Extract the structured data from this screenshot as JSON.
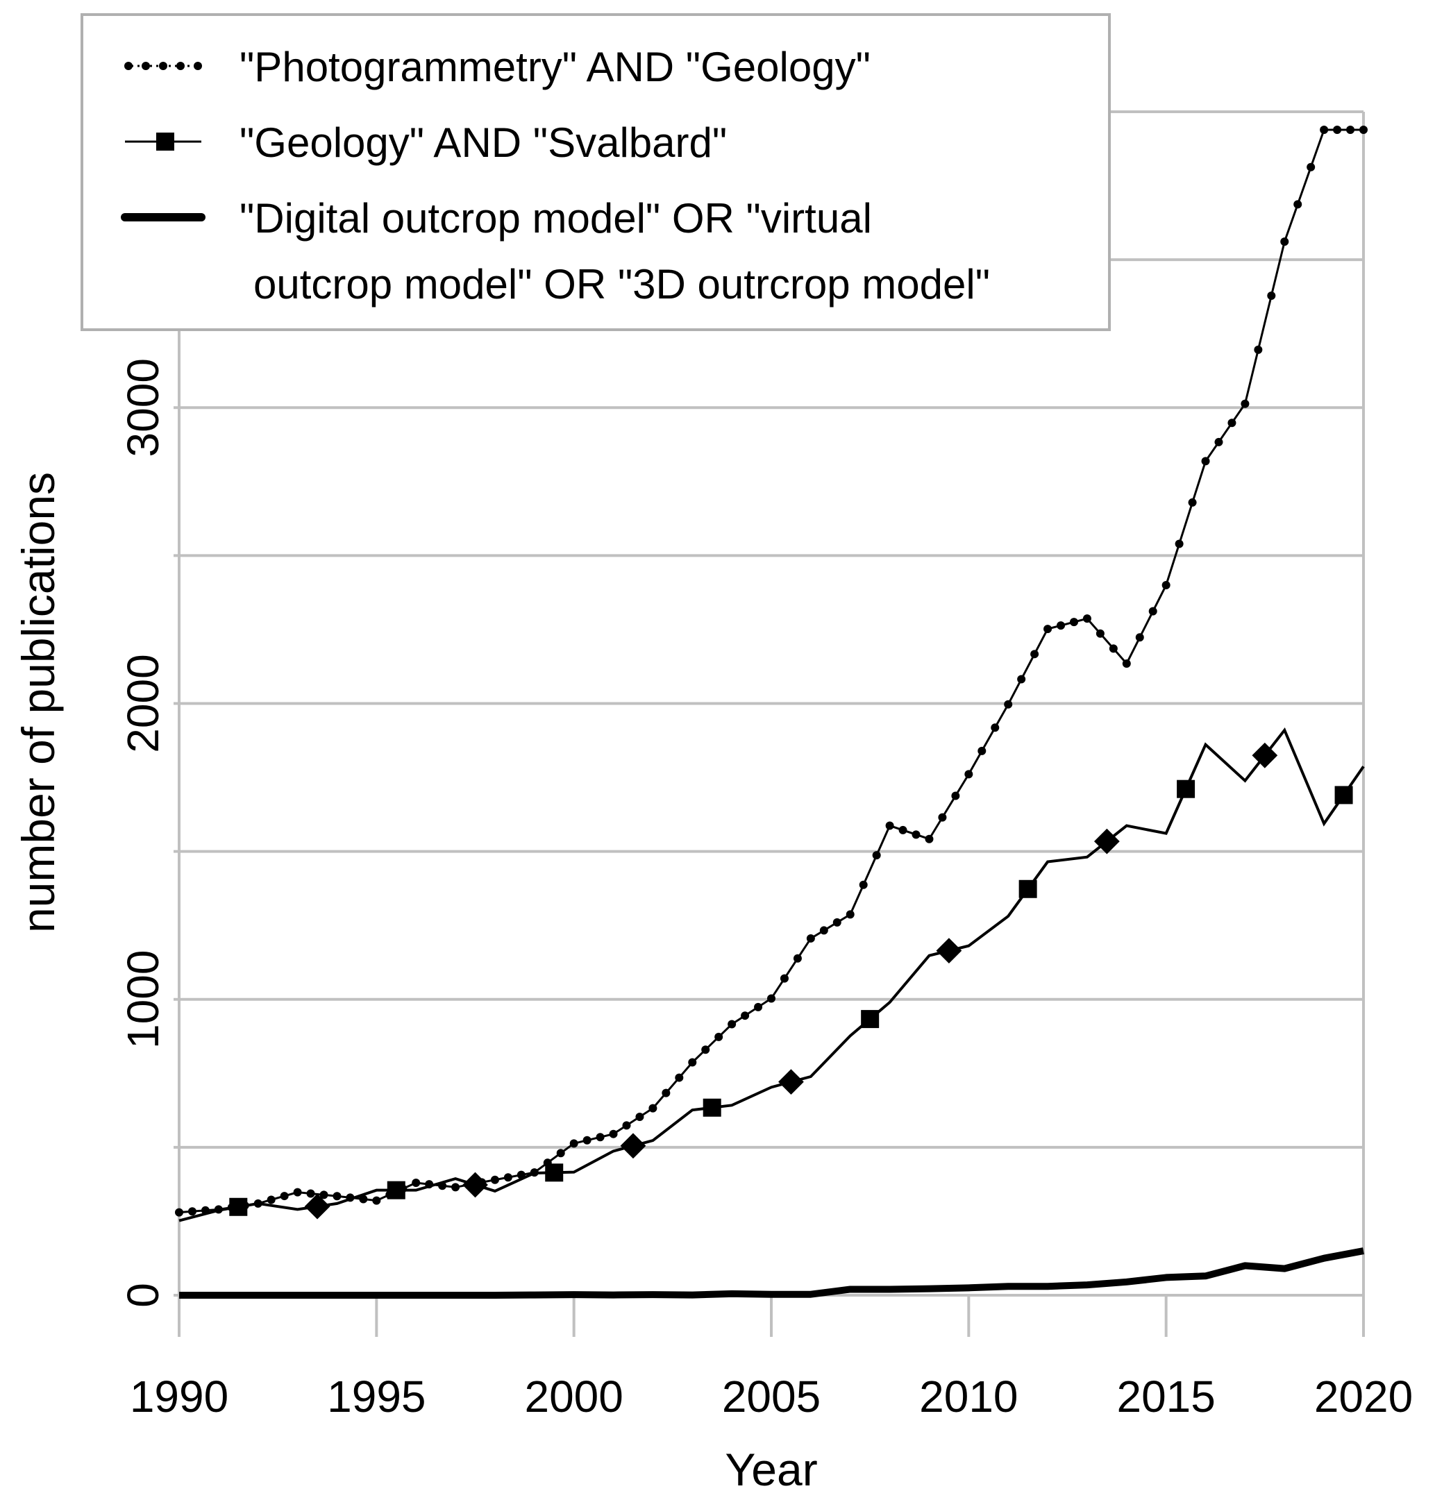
{
  "chart_data": {
    "type": "line",
    "title": "",
    "xlabel": "Year",
    "ylabel": "number of publications",
    "xlim": [
      1990,
      2020
    ],
    "ylim": [
      0,
      4000
    ],
    "grid": true,
    "legend_position": "top-left",
    "x_ticks": [
      "1990",
      "1995",
      "2000",
      "2005",
      "2010",
      "2015",
      "2020"
    ],
    "y_ticks": [
      "0",
      "1000",
      "2000",
      "3000"
    ],
    "x": [
      1990,
      1991,
      1992,
      1993,
      1994,
      1995,
      1996,
      1997,
      1998,
      1999,
      2000,
      2001,
      2002,
      2003,
      2004,
      2005,
      2006,
      2007,
      2008,
      2009,
      2010,
      2011,
      2012,
      2013,
      2014,
      2015,
      2016,
      2017,
      2018,
      2019,
      2020
    ],
    "series": [
      {
        "name": "\"Photogrammetry\" AND \"Geology\"",
        "style": "dotted-markers",
        "values": [
          280,
          290,
          310,
          348,
          335,
          320,
          380,
          365,
          390,
          415,
          513,
          545,
          632,
          787,
          916,
          1003,
          1206,
          1287,
          1587,
          1542,
          1761,
          1997,
          2252,
          2287,
          2135,
          2400,
          2819,
          3013,
          3561,
          3939,
          3939
        ]
      },
      {
        "name": "\"Geology\" AND \"Svalbard\"",
        "style": "square-markers",
        "values": [
          252,
          287,
          310,
          290,
          310,
          355,
          355,
          394,
          352,
          413,
          416,
          487,
          523,
          626,
          642,
          703,
          739,
          877,
          990,
          1148,
          1181,
          1281,
          1465,
          1481,
          1587,
          1561,
          1861,
          1739,
          1910,
          1594,
          1787
        ]
      },
      {
        "name": "\"Digital outcrop model\" OR \"virtual outcrop model\" OR \"3D outrcrop model\"",
        "legend_lines": [
          "\"Digital outcrop model\" OR \"virtual",
          "outcrop model\" OR \"3D outrcrop model\""
        ],
        "style": "thick",
        "values": [
          0,
          0,
          0,
          0,
          0,
          0,
          0,
          0,
          0,
          1,
          2,
          1,
          2,
          1,
          5,
          3,
          3,
          20,
          20,
          22,
          25,
          30,
          30,
          35,
          45,
          60,
          65,
          100,
          90,
          125,
          150
        ]
      }
    ],
    "colors": {
      "line": "#000000",
      "grid": "#c0c0c0",
      "legend_border": "#b0b0b0"
    }
  }
}
